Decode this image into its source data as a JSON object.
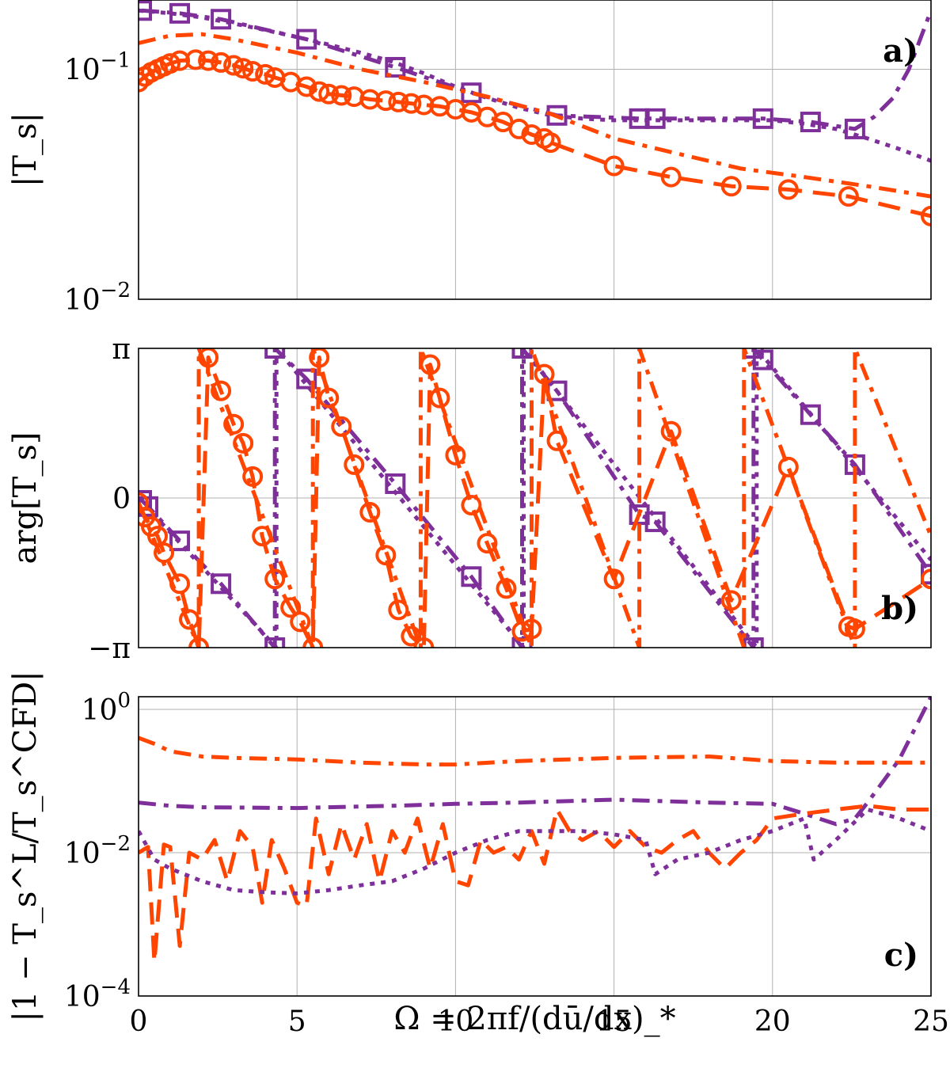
{
  "colors": {
    "orange": "#ff4500",
    "purple": "#7f2f99"
  },
  "chart_data": [
    {
      "panel": "a",
      "type": "line",
      "panel_tag": "a)",
      "ylabel": "|T_s|",
      "yscale": "log",
      "xlim": [
        0,
        25
      ],
      "ylim": [
        0.01,
        0.2
      ],
      "x_ticks": [
        0,
        5,
        10,
        15,
        20,
        25
      ],
      "y_ticks": [
        {
          "value": 0.01,
          "base": "10",
          "exp": "−2"
        },
        {
          "value": 0.1,
          "base": "10",
          "exp": "−1"
        }
      ],
      "grid": true,
      "series": [
        {
          "color": "#7f2f99",
          "style": "dotted",
          "marker": "none",
          "x": [
            0,
            1,
            2,
            3,
            4,
            5,
            6,
            7,
            8,
            9,
            10,
            11,
            12,
            13,
            14,
            15,
            16,
            17,
            18,
            19,
            20,
            21,
            22,
            23,
            24,
            25
          ],
          "y": [
            0.18,
            0.175,
            0.168,
            0.158,
            0.148,
            0.138,
            0.128,
            0.118,
            0.108,
            0.096,
            0.084,
            0.075,
            0.068,
            0.063,
            0.061,
            0.06,
            0.06,
            0.06,
            0.06,
            0.06,
            0.06,
            0.058,
            0.055,
            0.05,
            0.045,
            0.04
          ]
        },
        {
          "color": "#7f2f99",
          "style": "dashdot",
          "marker": "square",
          "x": [
            0.1,
            1.3,
            2.6,
            5.3,
            8.1,
            10.5,
            13.2,
            15.8,
            16.3,
            19.7,
            21.2,
            22.6,
            23.2,
            23.8,
            24.3,
            25
          ],
          "y": [
            0.18,
            0.175,
            0.165,
            0.135,
            0.102,
            0.079,
            0.063,
            0.061,
            0.061,
            0.061,
            0.059,
            0.055,
            0.062,
            0.075,
            0.1,
            0.18
          ]
        },
        {
          "color": "#ff4500",
          "style": "dashdot",
          "marker": "none",
          "x": [
            0,
            1,
            2,
            3,
            5,
            7,
            9,
            11,
            13,
            15,
            17,
            19,
            21,
            23,
            25
          ],
          "y": [
            0.13,
            0.14,
            0.142,
            0.135,
            0.118,
            0.1,
            0.088,
            0.076,
            0.064,
            0.05,
            0.043,
            0.037,
            0.034,
            0.031,
            0.028
          ]
        },
        {
          "color": "#ff4500",
          "style": "dashed",
          "marker": "circle",
          "x": [
            0,
            0.2,
            0.4,
            0.6,
            0.8,
            1.0,
            1.3,
            1.8,
            2.2,
            2.6,
            3.0,
            3.3,
            3.6,
            4.0,
            4.3,
            4.8,
            5.3,
            5.7,
            6.0,
            6.4,
            6.8,
            7.3,
            7.8,
            8.2,
            8.6,
            9.0,
            9.5,
            10.0,
            10.5,
            11.0,
            11.5,
            12.0,
            12.4,
            12.8,
            13.0,
            15.0,
            16.8,
            18.7,
            20.5,
            22.4,
            25.0
          ],
          "y": [
            0.088,
            0.093,
            0.097,
            0.1,
            0.103,
            0.106,
            0.109,
            0.11,
            0.109,
            0.107,
            0.104,
            0.101,
            0.098,
            0.095,
            0.092,
            0.088,
            0.084,
            0.08,
            0.078,
            0.077,
            0.076,
            0.074,
            0.073,
            0.072,
            0.071,
            0.07,
            0.069,
            0.067,
            0.065,
            0.062,
            0.059,
            0.055,
            0.052,
            0.05,
            0.048,
            0.038,
            0.034,
            0.031,
            0.03,
            0.028,
            0.023
          ]
        }
      ]
    },
    {
      "panel": "b",
      "type": "line",
      "panel_tag": "b)",
      "ylabel": "arg[T_s]",
      "xlim": [
        0,
        25
      ],
      "ylim": [
        -3.1416,
        3.1416
      ],
      "x_ticks": [
        0,
        5,
        10,
        15,
        20,
        25
      ],
      "y_ticks": [
        {
          "value": -3.1416,
          "label": "−π"
        },
        {
          "value": 0,
          "label": "0"
        },
        {
          "value": 3.1416,
          "label": "π"
        }
      ],
      "grid": true,
      "series": [
        {
          "color": "#7f2f99",
          "style": "dotted",
          "marker": "none",
          "x": [
            0,
            4.35,
            4.35,
            12.15,
            12.15,
            19.5,
            19.5,
            25
          ],
          "y": [
            0,
            -3.1416,
            3.1416,
            -3.1416,
            3.1416,
            -3.1416,
            3.1416,
            -1.3
          ]
        },
        {
          "color": "#7f2f99",
          "style": "dashdot",
          "marker": "square",
          "x": [
            0.1,
            0.3,
            1.3,
            2.6,
            4.3,
            4.3,
            5.3,
            8.1,
            10.5,
            12.1,
            12.1,
            13.2,
            15.8,
            16.3,
            19.4,
            19.4,
            19.7,
            21.2,
            22.6,
            25
          ],
          "y": [
            -0.05,
            -0.18,
            -0.9,
            -1.8,
            -3.1416,
            3.1416,
            2.5,
            0.3,
            -1.65,
            -3.1416,
            3.1416,
            2.25,
            -0.35,
            -0.5,
            -3.1416,
            3.1416,
            2.9,
            1.75,
            0.7,
            -1.6
          ]
        },
        {
          "color": "#ff4500",
          "style": "dashdot",
          "marker": "none",
          "x": [
            0,
            1.9,
            1.9,
            5.5,
            5.5,
            8.9,
            8.9,
            12.4,
            12.4,
            15.8,
            15.8,
            19.1,
            19.1,
            22.6,
            22.6,
            25
          ],
          "y": [
            -0.1,
            -3.1416,
            3.1416,
            -3.1416,
            3.1416,
            -3.1416,
            3.1416,
            -3.1416,
            3.1416,
            -3.1416,
            3.1416,
            -3.1416,
            3.1416,
            -3.1416,
            3.1416,
            -0.8
          ]
        },
        {
          "color": "#ff4500",
          "style": "dashed",
          "marker": "circle",
          "x": [
            0,
            0.2,
            0.4,
            0.6,
            0.8,
            1.3,
            1.6,
            1.9,
            2.2,
            2.6,
            3.0,
            3.3,
            3.6,
            3.9,
            4.3,
            4.8,
            5.1,
            5.5,
            5.7,
            6.0,
            6.4,
            6.8,
            7.3,
            7.8,
            8.2,
            8.6,
            9.0,
            9.2,
            9.5,
            10.0,
            10.5,
            11.0,
            11.6,
            12.1,
            12.4,
            12.8,
            13.2,
            15.0,
            16.8,
            18.7,
            20.5,
            22.4,
            22.6,
            25
          ],
          "y": [
            -0.1,
            -0.4,
            -0.6,
            -0.8,
            -1.15,
            -1.8,
            -2.55,
            -3.1416,
            2.95,
            2.25,
            1.55,
            1.15,
            0.45,
            -0.8,
            -1.7,
            -2.3,
            -2.6,
            -3.1416,
            2.95,
            2.1,
            1.5,
            0.7,
            -0.3,
            -1.2,
            -2.35,
            -2.9,
            -3.1416,
            2.8,
            2.1,
            0.9,
            -0.15,
            -0.95,
            -1.9,
            -2.8,
            -2.75,
            2.6,
            1.2,
            -1.7,
            1.4,
            -2.15,
            0.65,
            -2.7,
            -2.75,
            -1.7
          ]
        }
      ]
    },
    {
      "panel": "c",
      "type": "line",
      "panel_tag": "c)",
      "ylabel": "|1 − T_s^L/T_s^CFD|",
      "xlabel": "Ω = 2πf/(dū/dx)_*",
      "yscale": "log",
      "xlim": [
        0,
        25
      ],
      "ylim": [
        0.0001,
        1.5
      ],
      "x_ticks": [
        0,
        5,
        10,
        15,
        20,
        25
      ],
      "y_ticks": [
        {
          "value": 0.0001,
          "base": "10",
          "exp": "−4"
        },
        {
          "value": 0.01,
          "base": "10",
          "exp": "−2"
        },
        {
          "value": 1,
          "base": "10",
          "exp": "0"
        }
      ],
      "grid": true,
      "series": [
        {
          "color": "#ff4500",
          "style": "dashdot",
          "marker": "none",
          "x": [
            0,
            0.5,
            1,
            2,
            3,
            5,
            7,
            9,
            10,
            12,
            15,
            18,
            20,
            22,
            25
          ],
          "y": [
            0.4,
            0.33,
            0.26,
            0.22,
            0.21,
            0.2,
            0.18,
            0.17,
            0.17,
            0.19,
            0.21,
            0.22,
            0.19,
            0.18,
            0.18
          ]
        },
        {
          "color": "#7f2f99",
          "style": "dashdot",
          "marker": "none",
          "x": [
            0,
            1,
            2,
            5,
            8,
            10,
            12,
            15,
            18,
            20,
            21,
            22,
            22.6,
            23,
            24,
            25
          ],
          "y": [
            0.05,
            0.045,
            0.043,
            0.042,
            0.045,
            0.048,
            0.05,
            0.055,
            0.05,
            0.048,
            0.035,
            0.025,
            0.03,
            0.05,
            0.2,
            1.5
          ]
        },
        {
          "color": "#ff4500",
          "style": "dashed",
          "marker": "none",
          "x": [
            0,
            0.3,
            0.5,
            0.8,
            1.0,
            1.3,
            1.6,
            2.0,
            2.4,
            2.8,
            3.2,
            3.6,
            3.9,
            4.2,
            4.6,
            5.0,
            5.3,
            5.6,
            6.0,
            6.4,
            6.8,
            7.2,
            7.6,
            8.0,
            8.4,
            8.8,
            9.2,
            9.6,
            10.0,
            10.4,
            10.8,
            11.2,
            11.6,
            12.0,
            12.4,
            12.8,
            13.2,
            13.6,
            14.0,
            14.5,
            15.0,
            15.5,
            16.0,
            16.5,
            17.0,
            17.5,
            18.0,
            18.5,
            19.0,
            19.5,
            20.0,
            21.0,
            22.0,
            23.0,
            24.0,
            25.0
          ],
          "y": [
            0.01,
            0.012,
            0.0003,
            0.013,
            0.012,
            0.0005,
            0.01,
            0.008,
            0.015,
            0.004,
            0.02,
            0.012,
            0.002,
            0.015,
            0.006,
            0.002,
            0.0018,
            0.03,
            0.005,
            0.025,
            0.008,
            0.025,
            0.004,
            0.02,
            0.01,
            0.03,
            0.006,
            0.025,
            0.004,
            0.0035,
            0.015,
            0.01,
            0.012,
            0.008,
            0.02,
            0.007,
            0.04,
            0.02,
            0.015,
            0.02,
            0.012,
            0.02,
            0.012,
            0.01,
            0.015,
            0.02,
            0.01,
            0.006,
            0.01,
            0.015,
            0.03,
            0.035,
            0.04,
            0.045,
            0.04,
            0.04
          ]
        },
        {
          "color": "#7f2f99",
          "style": "dotted",
          "marker": "none",
          "x": [
            0,
            0.5,
            1,
            2,
            3,
            4,
            5,
            6,
            7,
            8,
            9,
            10,
            11,
            12,
            13,
            14,
            15,
            16,
            16.3,
            17,
            18,
            19,
            20,
            21,
            21.3,
            22,
            23,
            24,
            25
          ],
          "y": [
            0.02,
            0.008,
            0.006,
            0.004,
            0.003,
            0.0028,
            0.0027,
            0.003,
            0.0035,
            0.004,
            0.006,
            0.01,
            0.015,
            0.02,
            0.02,
            0.02,
            0.018,
            0.015,
            0.005,
            0.008,
            0.01,
            0.015,
            0.02,
            0.03,
            0.008,
            0.015,
            0.04,
            0.03,
            0.02
          ]
        }
      ]
    }
  ]
}
